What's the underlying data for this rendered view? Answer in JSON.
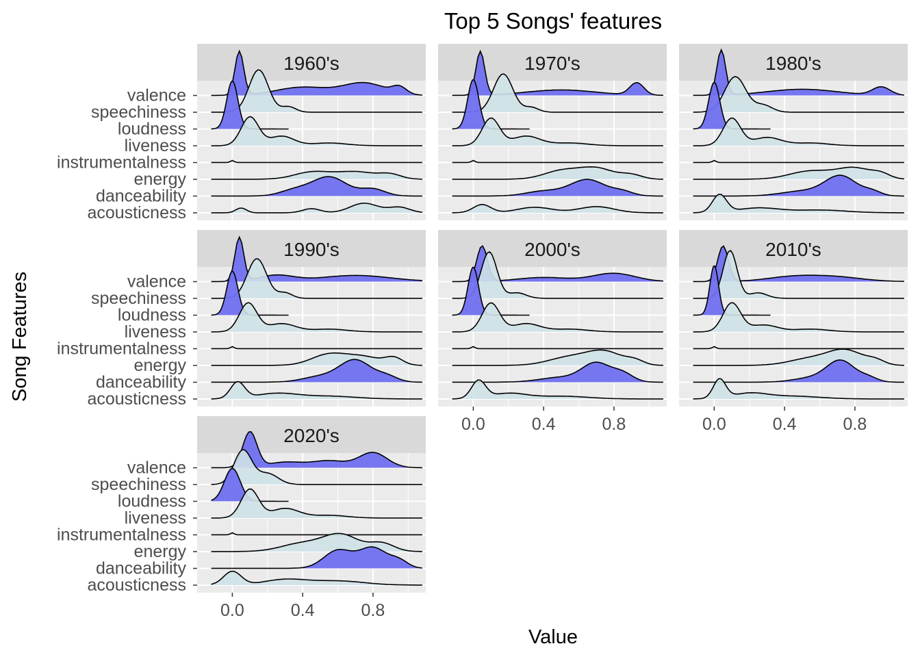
{
  "chart_data": {
    "type": "ridgeline",
    "title": "Top 5 Songs' features",
    "xlabel": "Value",
    "ylabel": "Song Features",
    "x_ticks": [
      0.0,
      0.4,
      0.8
    ],
    "x_tick_labels": [
      "0.0",
      "0.4",
      "0.8"
    ],
    "xlim": [
      -0.2,
      1.1
    ],
    "features": [
      "acousticness",
      "danceability",
      "energy",
      "instrumentalness",
      "liveness",
      "loudness",
      "speechiness",
      "valence"
    ],
    "colors": {
      "panel_bg": "#ebebeb",
      "strip_bg": "#d9d9d9",
      "grid_major": "#ffffff",
      "fill_light": "#cfe2e8",
      "fill_blue": "#7070f0",
      "outline": "#000000"
    },
    "fill_by_feature": {
      "acousticness": "light",
      "danceability": "blue",
      "energy": "light",
      "instrumentalness": "light",
      "liveness": "light",
      "loudness": "blue",
      "speechiness": "light",
      "valence": "blue"
    },
    "feature_range": {
      "acousticness": [
        -0.12,
        1.08
      ],
      "danceability": [
        -0.12,
        1.08
      ],
      "energy": [
        -0.12,
        1.08
      ],
      "instrumentalness": [
        -0.12,
        1.08
      ],
      "liveness": [
        -0.12,
        1.08
      ],
      "loudness": [
        -0.12,
        0.32
      ],
      "speechiness": [
        -0.12,
        1.08
      ],
      "valence": [
        -0.12,
        1.08
      ]
    },
    "panels": [
      {
        "facet": "1960's",
        "densities": {
          "acousticness": [
            [
              0.05,
              0.03,
              0.35
            ],
            [
              0.45,
              0.05,
              0.3
            ],
            [
              0.75,
              0.08,
              0.7
            ],
            [
              0.95,
              0.06,
              0.4
            ]
          ],
          "danceability": [
            [
              0.35,
              0.08,
              0.4
            ],
            [
              0.55,
              0.1,
              1.4
            ],
            [
              0.8,
              0.07,
              0.5
            ]
          ],
          "energy": [
            [
              0.45,
              0.1,
              0.5
            ],
            [
              0.7,
              0.12,
              0.55
            ],
            [
              0.9,
              0.06,
              0.3
            ]
          ],
          "instrumentalness": [
            [
              0.0,
              0.01,
              0.15
            ]
          ],
          "liveness": [
            [
              0.1,
              0.05,
              2.1
            ],
            [
              0.28,
              0.07,
              0.7
            ],
            [
              0.55,
              0.1,
              0.2
            ]
          ],
          "loudness": [
            [
              0.0,
              0.032,
              3.5
            ]
          ],
          "speechiness": [
            [
              0.15,
              0.055,
              3.1
            ],
            [
              0.32,
              0.04,
              0.4
            ]
          ],
          "valence": [
            [
              0.04,
              0.025,
              3.2
            ],
            [
              0.4,
              0.15,
              0.6
            ],
            [
              0.75,
              0.12,
              0.9
            ],
            [
              0.95,
              0.04,
              0.5
            ]
          ]
        }
      },
      {
        "facet": "1970's",
        "densities": {
          "acousticness": [
            [
              0.05,
              0.05,
              0.6
            ],
            [
              0.35,
              0.1,
              0.4
            ],
            [
              0.7,
              0.1,
              0.45
            ]
          ],
          "danceability": [
            [
              0.4,
              0.1,
              0.35
            ],
            [
              0.65,
              0.1,
              1.2
            ],
            [
              0.85,
              0.06,
              0.3
            ]
          ],
          "energy": [
            [
              0.5,
              0.1,
              0.6
            ],
            [
              0.7,
              0.1,
              0.8
            ],
            [
              0.9,
              0.06,
              0.3
            ]
          ],
          "instrumentalness": [
            [
              0.0,
              0.01,
              0.15
            ]
          ],
          "liveness": [
            [
              0.1,
              0.05,
              2.0
            ],
            [
              0.3,
              0.08,
              0.7
            ],
            [
              0.55,
              0.1,
              0.2
            ]
          ],
          "loudness": [
            [
              0.0,
              0.032,
              3.6
            ]
          ],
          "speechiness": [
            [
              0.17,
              0.055,
              2.8
            ],
            [
              0.33,
              0.04,
              0.35
            ]
          ],
          "valence": [
            [
              0.04,
              0.025,
              3.2
            ],
            [
              0.5,
              0.2,
              0.4
            ],
            [
              0.93,
              0.04,
              0.9
            ]
          ]
        }
      },
      {
        "facet": "1980's",
        "densities": {
          "acousticness": [
            [
              0.03,
              0.04,
              1.3
            ],
            [
              0.25,
              0.12,
              0.35
            ],
            [
              0.6,
              0.15,
              0.2
            ]
          ],
          "danceability": [
            [
              0.5,
              0.12,
              0.35
            ],
            [
              0.72,
              0.09,
              1.45
            ],
            [
              0.9,
              0.05,
              0.3
            ]
          ],
          "energy": [
            [
              0.55,
              0.12,
              0.6
            ],
            [
              0.8,
              0.1,
              0.8
            ],
            [
              0.95,
              0.05,
              0.3
            ]
          ],
          "instrumentalness": [
            [
              0.0,
              0.01,
              0.15
            ]
          ],
          "liveness": [
            [
              0.1,
              0.05,
              2.0
            ],
            [
              0.3,
              0.08,
              0.6
            ],
            [
              0.55,
              0.1,
              0.2
            ]
          ],
          "loudness": [
            [
              0.0,
              0.032,
              3.4
            ]
          ],
          "speechiness": [
            [
              0.12,
              0.06,
              2.6
            ],
            [
              0.28,
              0.05,
              0.5
            ]
          ],
          "valence": [
            [
              0.04,
              0.025,
              3.3
            ],
            [
              0.5,
              0.2,
              0.45
            ],
            [
              0.95,
              0.05,
              0.6
            ]
          ]
        }
      },
      {
        "facet": "1990's",
        "densities": {
          "acousticness": [
            [
              0.03,
              0.04,
              1.2
            ],
            [
              0.25,
              0.12,
              0.4
            ],
            [
              0.55,
              0.15,
              0.2
            ]
          ],
          "danceability": [
            [
              0.5,
              0.1,
              0.4
            ],
            [
              0.7,
              0.09,
              1.6
            ],
            [
              0.88,
              0.06,
              0.4
            ]
          ],
          "energy": [
            [
              0.55,
              0.1,
              0.8
            ],
            [
              0.75,
              0.1,
              0.6
            ],
            [
              0.92,
              0.05,
              0.5
            ]
          ],
          "instrumentalness": [
            [
              0.0,
              0.01,
              0.15
            ]
          ],
          "liveness": [
            [
              0.09,
              0.05,
              2.1
            ],
            [
              0.28,
              0.08,
              0.6
            ],
            [
              0.55,
              0.1,
              0.2
            ]
          ],
          "loudness": [
            [
              0.0,
              0.032,
              3.2
            ]
          ],
          "speechiness": [
            [
              0.14,
              0.055,
              2.9
            ],
            [
              0.3,
              0.04,
              0.4
            ]
          ],
          "valence": [
            [
              0.04,
              0.025,
              3.2
            ],
            [
              0.25,
              0.1,
              0.45
            ],
            [
              0.7,
              0.2,
              0.45
            ]
          ]
        }
      },
      {
        "facet": "2000's",
        "densities": {
          "acousticness": [
            [
              0.03,
              0.04,
              1.3
            ],
            [
              0.2,
              0.1,
              0.4
            ],
            [
              0.5,
              0.15,
              0.2
            ]
          ],
          "danceability": [
            [
              0.5,
              0.12,
              0.35
            ],
            [
              0.7,
              0.08,
              1.35
            ],
            [
              0.85,
              0.06,
              0.6
            ]
          ],
          "energy": [
            [
              0.55,
              0.12,
              0.6
            ],
            [
              0.75,
              0.1,
              0.95
            ],
            [
              0.92,
              0.05,
              0.3
            ]
          ],
          "instrumentalness": [
            [
              0.0,
              0.01,
              0.15
            ]
          ],
          "liveness": [
            [
              0.1,
              0.05,
              2.1
            ],
            [
              0.3,
              0.08,
              0.6
            ],
            [
              0.55,
              0.1,
              0.2
            ]
          ],
          "loudness": [
            [
              0.0,
              0.03,
              3.5
            ]
          ],
          "speechiness": [
            [
              0.09,
              0.045,
              3.4
            ],
            [
              0.25,
              0.05,
              0.4
            ]
          ],
          "valence": [
            [
              0.05,
              0.03,
              2.6
            ],
            [
              0.4,
              0.15,
              0.3
            ],
            [
              0.8,
              0.12,
              0.6
            ]
          ]
        }
      },
      {
        "facet": "2010's",
        "densities": {
          "acousticness": [
            [
              0.03,
              0.035,
              1.4
            ],
            [
              0.2,
              0.1,
              0.4
            ],
            [
              0.45,
              0.15,
              0.2
            ]
          ],
          "danceability": [
            [
              0.55,
              0.1,
              0.3
            ],
            [
              0.72,
              0.08,
              1.55
            ],
            [
              0.88,
              0.05,
              0.3
            ]
          ],
          "energy": [
            [
              0.55,
              0.12,
              0.5
            ],
            [
              0.75,
              0.1,
              1.05
            ],
            [
              0.92,
              0.05,
              0.3
            ]
          ],
          "instrumentalness": [
            [
              0.0,
              0.01,
              0.15
            ]
          ],
          "liveness": [
            [
              0.1,
              0.05,
              2.1
            ],
            [
              0.28,
              0.08,
              0.5
            ],
            [
              0.55,
              0.1,
              0.2
            ]
          ],
          "loudness": [
            [
              0.0,
              0.025,
              3.6
            ]
          ],
          "speechiness": [
            [
              0.09,
              0.04,
              3.5
            ],
            [
              0.25,
              0.05,
              0.4
            ]
          ],
          "valence": [
            [
              0.05,
              0.03,
              2.6
            ],
            [
              0.45,
              0.15,
              0.35
            ],
            [
              0.7,
              0.15,
              0.3
            ]
          ]
        }
      },
      {
        "facet": "2020's",
        "densities": {
          "acousticness": [
            [
              0.0,
              0.05,
              1.0
            ],
            [
              0.3,
              0.12,
              0.4
            ],
            [
              0.6,
              0.15,
              0.3
            ]
          ],
          "danceability": [
            [
              0.6,
              0.08,
              1.3
            ],
            [
              0.8,
              0.08,
              1.5
            ],
            [
              0.95,
              0.05,
              0.5
            ]
          ],
          "energy": [
            [
              0.4,
              0.12,
              0.6
            ],
            [
              0.62,
              0.1,
              1.2
            ],
            [
              0.85,
              0.07,
              0.6
            ]
          ],
          "instrumentalness": [
            [
              0.0,
              0.01,
              0.15
            ]
          ],
          "liveness": [
            [
              0.1,
              0.05,
              2.1
            ],
            [
              0.3,
              0.08,
              0.7
            ],
            [
              0.55,
              0.1,
              0.2
            ]
          ],
          "loudness": [
            [
              0.0,
              0.045,
              2.4
            ]
          ],
          "speechiness": [
            [
              0.06,
              0.05,
              2.5
            ],
            [
              0.2,
              0.06,
              0.8
            ]
          ],
          "valence": [
            [
              0.1,
              0.04,
              2.6
            ],
            [
              0.3,
              0.1,
              0.4
            ],
            [
              0.55,
              0.1,
              0.5
            ],
            [
              0.8,
              0.08,
              1.1
            ]
          ]
        }
      }
    ]
  }
}
